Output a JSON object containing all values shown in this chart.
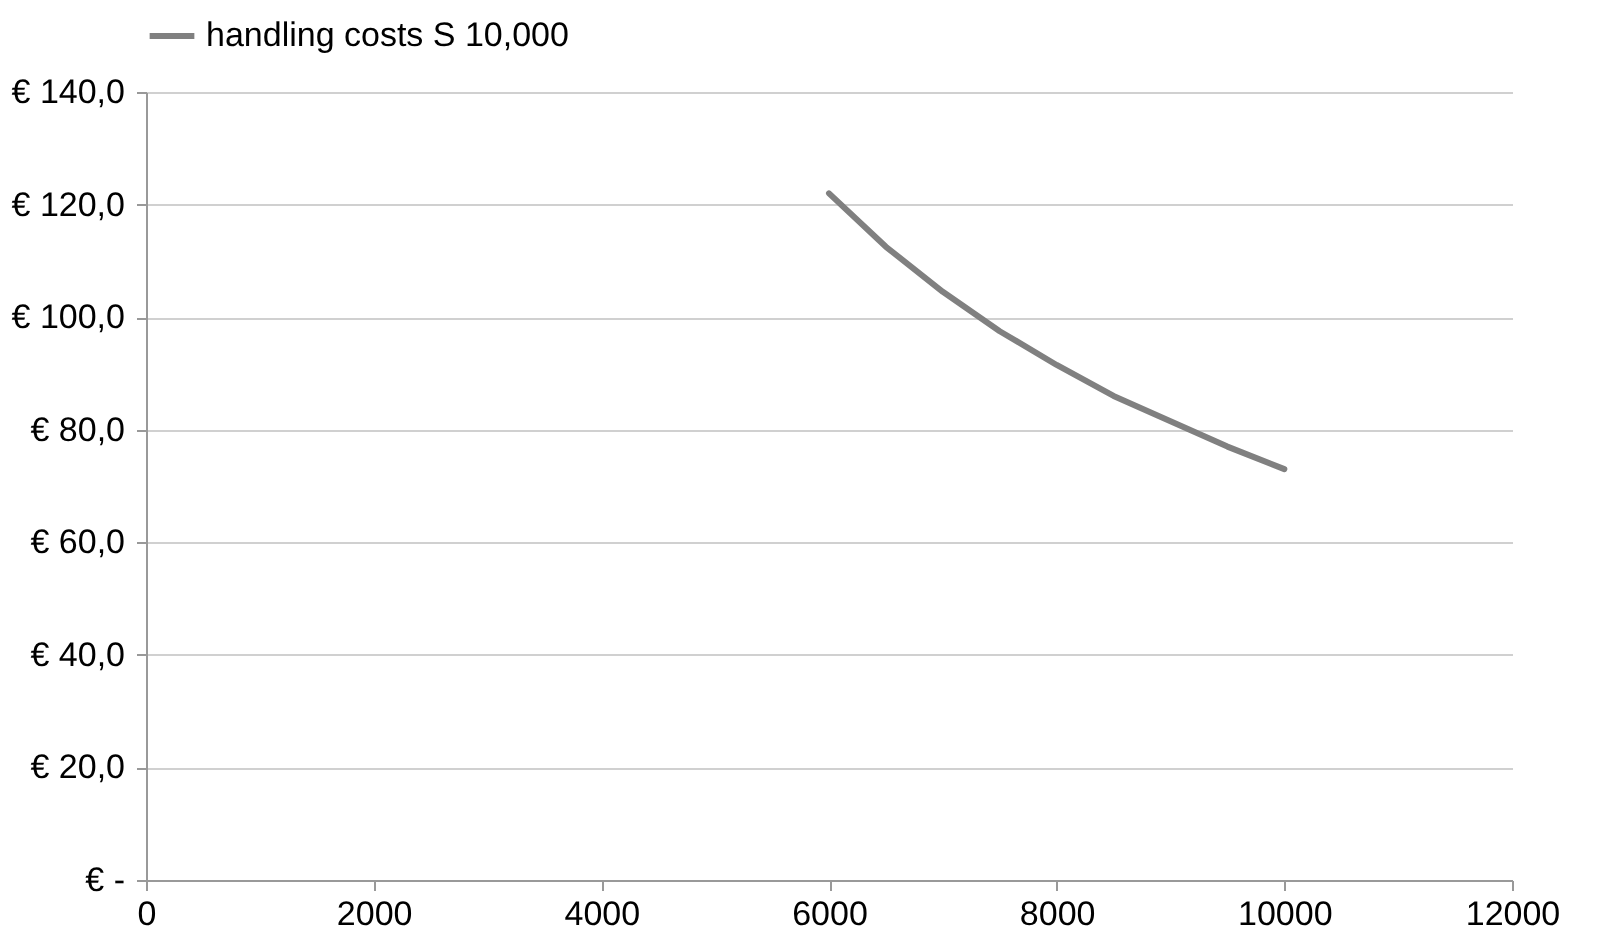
{
  "chart_data": {
    "type": "line",
    "x": [
      6000,
      6500,
      7000,
      7500,
      8000,
      8500,
      9000,
      9500,
      10000
    ],
    "series": [
      {
        "name": "handling costs S 10,000",
        "color": "#808080",
        "values": [
          122,
          112.5,
          104.5,
          97.5,
          91.5,
          86,
          81.5,
          77,
          73
        ]
      }
    ],
    "xlim": [
      0,
      12000
    ],
    "xticks": [
      0,
      2000,
      4000,
      6000,
      8000,
      10000,
      12000
    ],
    "ylim": [
      0,
      140
    ],
    "yticks": [
      {
        "value": 0,
        "label": "€ -"
      },
      {
        "value": 20,
        "label": "€ 20,0"
      },
      {
        "value": 40,
        "label": "€ 40,0"
      },
      {
        "value": 60,
        "label": "€ 60,0"
      },
      {
        "value": 80,
        "label": "€ 80,0"
      },
      {
        "value": 100,
        "label": "€ 100,0"
      },
      {
        "value": 120,
        "label": "€ 120,0"
      },
      {
        "value": 140,
        "label": "€ 140,0"
      }
    ],
    "grid": "y",
    "legend": "top",
    "marker": "none",
    "line_style": "solid"
  }
}
